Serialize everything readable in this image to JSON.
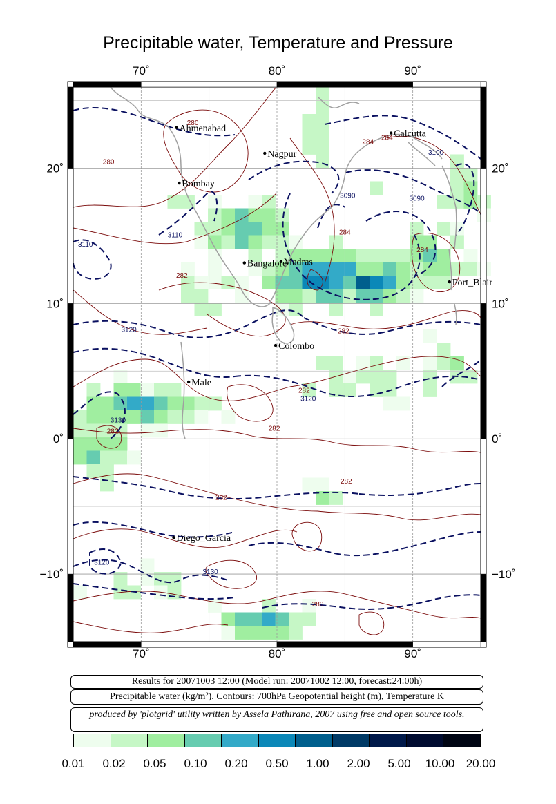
{
  "title": "Precipitable water, Temperature and Pressure",
  "map": {
    "lon_range": [
      65,
      95
    ],
    "lat_range": [
      -15,
      26
    ],
    "lon_ticks": [
      {
        "value": 70,
        "label": "70˚"
      },
      {
        "value": 80,
        "label": "80˚"
      },
      {
        "value": 90,
        "label": "90˚"
      }
    ],
    "lat_ticks": [
      {
        "value": 20,
        "label": "20˚"
      },
      {
        "value": 10,
        "label": "10˚"
      },
      {
        "value": 0,
        "label": "0˚"
      },
      {
        "value": -10,
        "label": "−10˚"
      }
    ],
    "cities": [
      {
        "name": "Ahmenabad",
        "lon": 72.6,
        "lat": 23.0
      },
      {
        "name": "Nagpur",
        "lon": 79.1,
        "lat": 21.1
      },
      {
        "name": "Calcutta",
        "lon": 88.4,
        "lat": 22.6
      },
      {
        "name": "Bombay",
        "lon": 72.8,
        "lat": 18.9
      },
      {
        "name": "Bangalore",
        "lon": 77.6,
        "lat": 13.0
      },
      {
        "name": "Madras",
        "lon": 80.3,
        "lat": 13.1
      },
      {
        "name": "Port_Blair",
        "lon": 92.7,
        "lat": 11.6
      },
      {
        "name": "Colombo",
        "lon": 79.9,
        "lat": 6.9
      },
      {
        "name": "Male",
        "lon": 73.5,
        "lat": 4.2
      },
      {
        "name": "Diego_Garcia",
        "lon": 72.4,
        "lat": -7.3
      }
    ],
    "contour_labels": [
      {
        "text": "280",
        "lon": 73.8,
        "lat": 23.2,
        "type": "temperature"
      },
      {
        "text": "280",
        "lon": 67.6,
        "lat": 20.3,
        "type": "temperature"
      },
      {
        "text": "284",
        "lon": 86.7,
        "lat": 21.8,
        "type": "temperature"
      },
      {
        "text": "284",
        "lon": 88.1,
        "lat": 22.1,
        "type": "temperature"
      },
      {
        "text": "282",
        "lon": 73.0,
        "lat": 11.9,
        "type": "temperature"
      },
      {
        "text": "284",
        "lon": 85.0,
        "lat": 15.1,
        "type": "temperature"
      },
      {
        "text": "284",
        "lon": 90.7,
        "lat": 13.8,
        "type": "temperature"
      },
      {
        "text": "282",
        "lon": 84.9,
        "lat": 7.8,
        "type": "temperature"
      },
      {
        "text": "282",
        "lon": 82.0,
        "lat": 3.4,
        "type": "temperature"
      },
      {
        "text": "282",
        "lon": 67.9,
        "lat": 0.4,
        "type": "temperature"
      },
      {
        "text": "282",
        "lon": 79.8,
        "lat": 0.6,
        "type": "temperature"
      },
      {
        "text": "282",
        "lon": 85.1,
        "lat": -3.3,
        "type": "temperature"
      },
      {
        "text": "282",
        "lon": 75.9,
        "lat": -4.5,
        "type": "temperature"
      },
      {
        "text": "280",
        "lon": 83.0,
        "lat": -12.4,
        "type": "temperature"
      },
      {
        "text": "3110",
        "lon": 65.9,
        "lat": 14.2,
        "type": "height"
      },
      {
        "text": "3110",
        "lon": 72.5,
        "lat": 14.9,
        "type": "height"
      },
      {
        "text": "3100",
        "lon": 91.7,
        "lat": 21.0,
        "type": "height"
      },
      {
        "text": "3090",
        "lon": 85.2,
        "lat": 17.8,
        "type": "height"
      },
      {
        "text": "3090",
        "lon": 90.3,
        "lat": 17.6,
        "type": "height"
      },
      {
        "text": "3120",
        "lon": 69.1,
        "lat": 7.9,
        "type": "height"
      },
      {
        "text": "3120",
        "lon": 82.3,
        "lat": 2.8,
        "type": "height"
      },
      {
        "text": "3120",
        "lon": 67.1,
        "lat": -9.3,
        "type": "height"
      },
      {
        "text": "3130",
        "lon": 75.1,
        "lat": -10.0,
        "type": "height"
      },
      {
        "text": "3130",
        "lon": 68.3,
        "lat": 1.2,
        "type": "height"
      }
    ]
  },
  "info": {
    "line1": "Results for 20071003 12:00 (Model run: 20071002 12:00, forecast:24:00h)",
    "line2": "Precipitable water (kg/m²).  Contours: 700hPa Geopotential height (m), Temperature K",
    "line3": "produced by 'plotgrid' utility written by Assela Pathirana, 2007 using free and open source tools."
  },
  "colorbar": {
    "colors": [
      "#eefdee",
      "#c6f7c6",
      "#a0eea0",
      "#66ccb0",
      "#33aac8",
      "#0b88b8",
      "#005f8d",
      "#003a66",
      "#00194a",
      "#000b30",
      "#000514"
    ],
    "labels": [
      "0.01",
      "0.02",
      "0.05",
      "0.10",
      "0.20",
      "0.50",
      "1.00",
      "2.00",
      "5.00",
      "10.00",
      "20.00"
    ]
  }
}
